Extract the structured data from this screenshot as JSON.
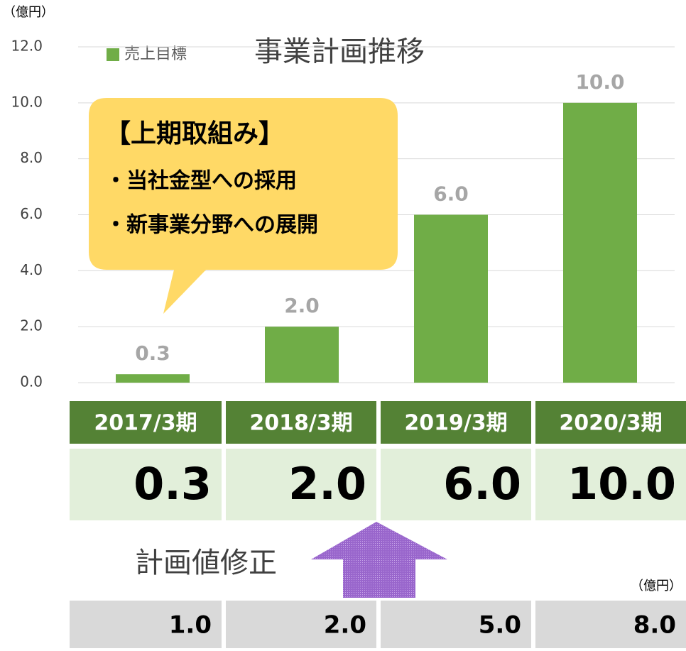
{
  "chart_data": {
    "type": "bar",
    "title": "事業計画推移",
    "y_unit": "（億円）",
    "legend": "売上目標",
    "color": "#70ad47",
    "categories": [
      "2017/3期",
      "2018/3期",
      "2019/3期",
      "2020/3期"
    ],
    "values": [
      0.3,
      2.0,
      6.0,
      10.0
    ],
    "value_labels": [
      "0.3",
      "2.0",
      "6.0",
      "10.0"
    ],
    "ylim": [
      0,
      12
    ],
    "yticks": [
      {
        "value": 0,
        "label": "0.0"
      },
      {
        "value": 2,
        "label": "2.0"
      },
      {
        "value": 4,
        "label": "4.0"
      },
      {
        "value": 6,
        "label": "6.0"
      },
      {
        "value": 8,
        "label": "8.0"
      },
      {
        "value": 10,
        "label": "10.0"
      },
      {
        "value": 12,
        "label": "12.0"
      }
    ],
    "grid": true
  },
  "callout": {
    "title": "【上期取組み】",
    "items": [
      "・当社金型への採用",
      "・新事業分野への展開"
    ]
  },
  "revision": {
    "label": "計画値修正",
    "unit": "（億円）",
    "values": [
      "1.0",
      "2.0",
      "5.0",
      "8.0"
    ]
  }
}
